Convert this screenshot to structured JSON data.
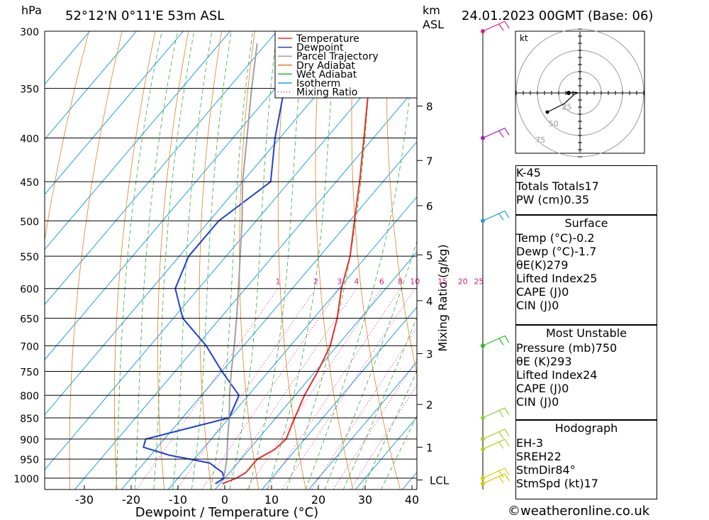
{
  "header": {
    "pressure_unit": "hPa",
    "location": "52°12'N  0°11'E  53m  ASL",
    "height_unit_line1": "km",
    "height_unit_line2": "ASL",
    "datetime": "24.01.2023 00GMT (Base: 06)"
  },
  "chart_data": {
    "type": "line",
    "diagram": "skew-t log-p",
    "xlabel": "Dewpoint / Temperature (°C)",
    "ylabel_left": "hPa",
    "ylabel_right": "Mixing Ratio (g/kg)",
    "pressure_ticks": [
      300,
      350,
      400,
      450,
      500,
      550,
      600,
      650,
      700,
      750,
      800,
      850,
      900,
      950,
      1000
    ],
    "temperature_ticks": [
      -30,
      -20,
      -10,
      0,
      10,
      20,
      30,
      40
    ],
    "height_ticks_km": [
      {
        "label": "8",
        "p": 367
      },
      {
        "label": "7",
        "p": 425
      },
      {
        "label": "6",
        "p": 480
      },
      {
        "label": "5",
        "p": 548
      },
      {
        "label": "4",
        "p": 620
      },
      {
        "label": "3",
        "p": 715
      },
      {
        "label": "2",
        "p": 820
      },
      {
        "label": "1",
        "p": 920
      },
      {
        "label": "LCL",
        "p": 1005
      }
    ],
    "mixing_ratio_labels": [
      "1",
      "2",
      "3",
      "4",
      "6",
      "8",
      "10",
      "15",
      "20",
      "25"
    ],
    "mixing_ratio_values": [
      1,
      2,
      3,
      4,
      6,
      8,
      10,
      15,
      20,
      25
    ],
    "legend": [
      {
        "name": "Temperature",
        "color": "#e83030",
        "style": "solid"
      },
      {
        "name": "Dewpoint",
        "color": "#2040d0",
        "style": "solid"
      },
      {
        "name": "Parcel Trajectory",
        "color": "#a0a0a0",
        "style": "solid"
      },
      {
        "name": "Dry Adiabat",
        "color": "#e08020",
        "style": "solid"
      },
      {
        "name": "Wet Adiabat",
        "color": "#30b030",
        "style": "solid"
      },
      {
        "name": "Isotherm",
        "color": "#20a0e0",
        "style": "solid"
      },
      {
        "name": "Mixing Ratio",
        "color": "#d02090",
        "style": "dotted"
      }
    ],
    "series": [
      {
        "name": "Temperature",
        "points": [
          {
            "p": 1015,
            "t": 0.5
          },
          {
            "p": 1000,
            "t": 2.5
          },
          {
            "p": 985,
            "t": 3.5
          },
          {
            "p": 950,
            "t": 3.5
          },
          {
            "p": 925,
            "t": 5.5
          },
          {
            "p": 900,
            "t": 6
          },
          {
            "p": 850,
            "t": 4
          },
          {
            "p": 800,
            "t": 2
          },
          {
            "p": 750,
            "t": 0.5
          },
          {
            "p": 700,
            "t": -1.5
          },
          {
            "p": 650,
            "t": -5
          },
          {
            "p": 600,
            "t": -9.5
          },
          {
            "p": 550,
            "t": -13.5
          },
          {
            "p": 500,
            "t": -19
          },
          {
            "p": 450,
            "t": -25
          },
          {
            "p": 400,
            "t": -32
          },
          {
            "p": 350,
            "t": -40
          },
          {
            "p": 300,
            "t": -48
          }
        ]
      },
      {
        "name": "Dewpoint",
        "points": [
          {
            "p": 1015,
            "t": -1
          },
          {
            "p": 1000,
            "t": -0.2
          },
          {
            "p": 985,
            "t": -1.5
          },
          {
            "p": 960,
            "t": -6
          },
          {
            "p": 940,
            "t": -16
          },
          {
            "p": 920,
            "t": -23
          },
          {
            "p": 900,
            "t": -24
          },
          {
            "p": 850,
            "t": -10
          },
          {
            "p": 800,
            "t": -12
          },
          {
            "p": 750,
            "t": -20
          },
          {
            "p": 700,
            "t": -28
          },
          {
            "p": 650,
            "t": -38
          },
          {
            "p": 600,
            "t": -45
          },
          {
            "p": 550,
            "t": -48
          },
          {
            "p": 500,
            "t": -48
          },
          {
            "p": 450,
            "t": -44
          },
          {
            "p": 400,
            "t": -51
          },
          {
            "p": 350,
            "t": -58
          },
          {
            "p": 300,
            "t": -67
          }
        ]
      },
      {
        "name": "Parcel Trajectory",
        "points": [
          {
            "p": 1000,
            "t": -0.2
          },
          {
            "p": 950,
            "t": -3
          },
          {
            "p": 900,
            "t": -6.5
          },
          {
            "p": 850,
            "t": -10
          },
          {
            "p": 800,
            "t": -14
          },
          {
            "p": 750,
            "t": -18
          },
          {
            "p": 700,
            "t": -22
          },
          {
            "p": 650,
            "t": -26.5
          },
          {
            "p": 600,
            "t": -31.5
          },
          {
            "p": 550,
            "t": -37
          },
          {
            "p": 500,
            "t": -43
          },
          {
            "p": 450,
            "t": -50
          },
          {
            "p": 400,
            "t": -57
          },
          {
            "p": 350,
            "t": -65
          },
          {
            "p": 310,
            "t": -72
          }
        ]
      }
    ],
    "wind_profile": [
      {
        "p": 300,
        "color": "#e0208a"
      },
      {
        "p": 400,
        "color": "#a020d0"
      },
      {
        "p": 500,
        "color": "#20a0e0"
      },
      {
        "p": 700,
        "color": "#20c020"
      },
      {
        "p": 850,
        "color": "#90d030"
      },
      {
        "p": 900,
        "color": "#a0d020"
      },
      {
        "p": 925,
        "color": "#b0d020"
      },
      {
        "p": 1000,
        "color": "#d0d000"
      },
      {
        "p": 1015,
        "color": "#e0c000"
      }
    ]
  },
  "hodograph": {
    "unit_label": "kt",
    "ring_labels": [
      "25",
      "50",
      "75"
    ]
  },
  "indices": [
    {
      "label": "K",
      "value": "-45"
    },
    {
      "label": "Totals Totals",
      "value": "17"
    },
    {
      "label": "PW (cm)",
      "value": "0.35"
    }
  ],
  "surface": {
    "title": "Surface",
    "rows": [
      {
        "label": "Temp (°C)",
        "value": "-0.2"
      },
      {
        "label": "Dewp (°C)",
        "value": "-1.7"
      },
      {
        "label": "θE(K)",
        "value": "279"
      },
      {
        "label": "Lifted Index",
        "value": "25"
      },
      {
        "label": "CAPE (J)",
        "value": "0"
      },
      {
        "label": "CIN (J)",
        "value": "0"
      }
    ]
  },
  "most_unstable": {
    "title": "Most Unstable",
    "rows": [
      {
        "label": "Pressure (mb)",
        "value": "750"
      },
      {
        "label": "θE (K)",
        "value": "293"
      },
      {
        "label": "Lifted Index",
        "value": "24"
      },
      {
        "label": "CAPE (J)",
        "value": "0"
      },
      {
        "label": "CIN (J)",
        "value": "0"
      }
    ]
  },
  "hodograph_stats": {
    "title": "Hodograph",
    "rows": [
      {
        "label": "EH",
        "value": "-3"
      },
      {
        "label": "SREH",
        "value": "22"
      },
      {
        "label": "StmDir",
        "value": "84°"
      },
      {
        "label": "StmSpd (kt)",
        "value": "17"
      }
    ]
  },
  "footer": {
    "copyright": "©weatheronline.co.uk"
  }
}
